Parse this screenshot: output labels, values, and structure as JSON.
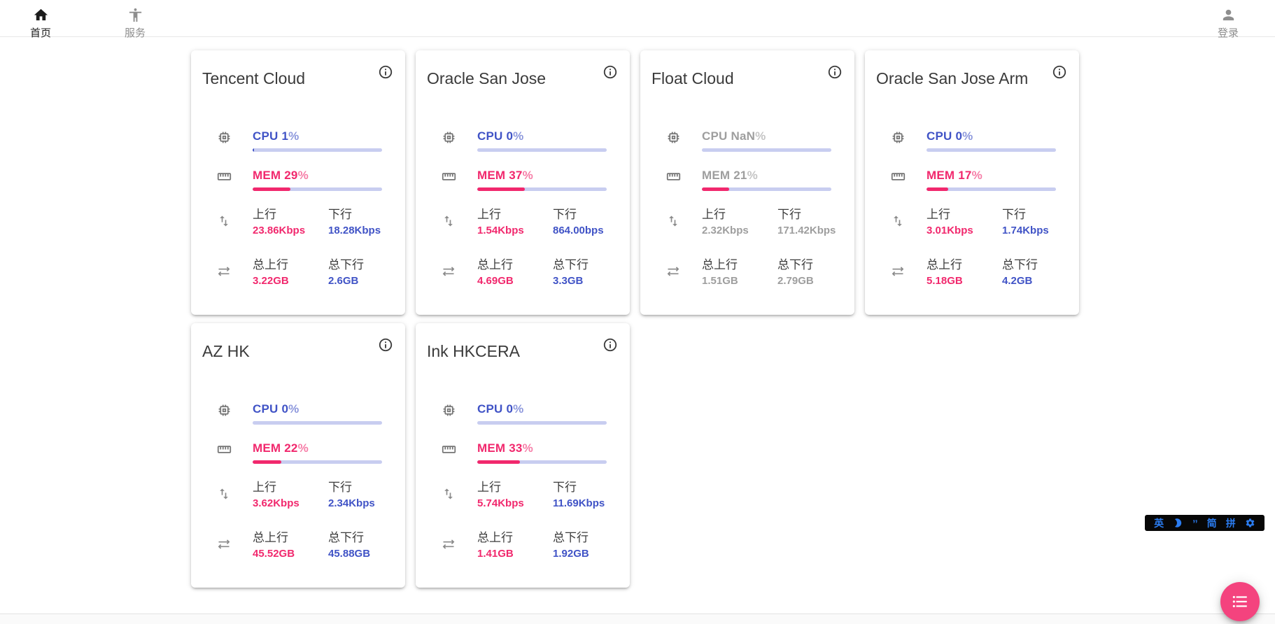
{
  "navbar": {
    "home": {
      "label": "首页"
    },
    "services": {
      "label": "服务"
    },
    "login": {
      "label": "登录"
    }
  },
  "metric_labels": {
    "cpu": "CPU",
    "mem": "MEM",
    "percent": "%",
    "upload": "上行",
    "download": "下行",
    "total_upload": "总上行",
    "total_download": "总下行"
  },
  "colors": {
    "accent_blue": "#4053c6",
    "accent_pink": "#f1286d",
    "progress_track": "#c8cdf0",
    "offline_gray": "#9e9e9e",
    "fab_pink": "#f4437e",
    "ime_blue": "#2b7cf0"
  },
  "servers": [
    {
      "name": "Tencent Cloud",
      "state": "online",
      "cpu": "1",
      "cpu_pct": 1,
      "mem": "29",
      "mem_pct": 29,
      "up": "23.86Kbps",
      "down": "18.28Kbps",
      "total_up": "3.22GB",
      "total_down": "2.6GB"
    },
    {
      "name": "Oracle San Jose",
      "state": "online",
      "cpu": "0",
      "cpu_pct": 0,
      "mem": "37",
      "mem_pct": 37,
      "up": "1.54Kbps",
      "down": "864.00bps",
      "total_up": "4.69GB",
      "total_down": "3.3GB"
    },
    {
      "name": "Float Cloud",
      "state": "offline",
      "cpu": "NaN",
      "cpu_pct": 0,
      "mem": "21",
      "mem_pct": 21,
      "up": "2.32Kbps",
      "down": "171.42Kbps",
      "total_up": "1.51GB",
      "total_down": "2.79GB"
    },
    {
      "name": "Oracle San Jose Arm",
      "state": "online",
      "cpu": "0",
      "cpu_pct": 0,
      "mem": "17",
      "mem_pct": 17,
      "up": "3.01Kbps",
      "down": "1.74Kbps",
      "total_up": "5.18GB",
      "total_down": "4.2GB"
    },
    {
      "name": "AZ HK",
      "state": "online",
      "cpu": "0",
      "cpu_pct": 0,
      "mem": "22",
      "mem_pct": 22,
      "up": "3.62Kbps",
      "down": "2.34Kbps",
      "total_up": "45.52GB",
      "total_down": "45.88GB"
    },
    {
      "name": "Ink HKCERA",
      "state": "online",
      "cpu": "0",
      "cpu_pct": 0,
      "mem": "33",
      "mem_pct": 33,
      "up": "5.74Kbps",
      "down": "11.69Kbps",
      "total_up": "1.41GB",
      "total_down": "1.92GB"
    }
  ],
  "ime_bar": {
    "lang": "英",
    "punct": "’’",
    "simplified": "简",
    "pinyin": "拼"
  }
}
